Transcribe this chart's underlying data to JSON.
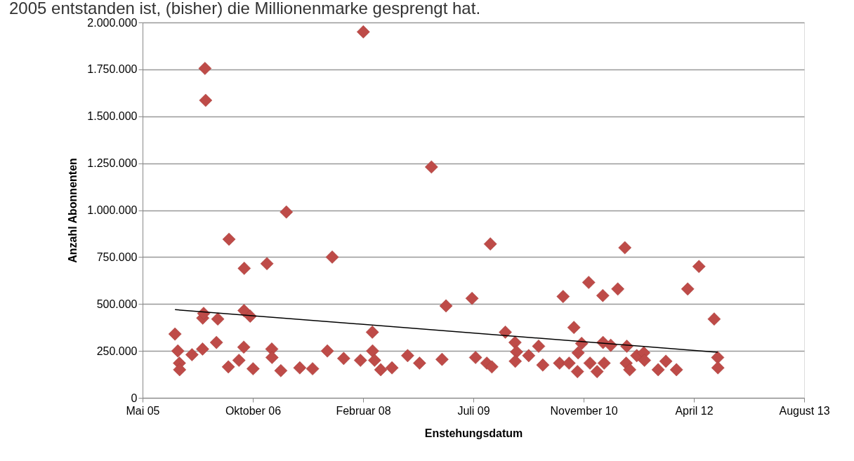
{
  "chart_data": {
    "type": "scatter",
    "xlabel": "Enstehungsdatum",
    "ylabel": "Anzahl Abonnenten",
    "annotations": [
      "2005 entstanden ist, (bisher) die Millionenmarke gesprengt hat."
    ],
    "xlim": [
      "2005-05-28",
      "2013-08-14"
    ],
    "xticks": [
      {
        "value": "2005-05-28",
        "label": "Mai 05"
      },
      {
        "value": "2006-10-10",
        "label": "Oktober 06"
      },
      {
        "value": "2008-02-22",
        "label": "Februar 08"
      },
      {
        "value": "2009-07-06",
        "label": "Juli 09"
      },
      {
        "value": "2010-11-18",
        "label": "November 10"
      },
      {
        "value": "2012-04-01",
        "label": "April 12"
      },
      {
        "value": "2013-08-14",
        "label": "August 13"
      }
    ],
    "ylim": [
      0,
      2000000
    ],
    "yticks": [
      0,
      {
        "value": 250000,
        "label": "250.000"
      },
      {
        "value": 500000,
        "label": "500.000"
      },
      {
        "value": 750000,
        "label": "750.000"
      },
      {
        "value": 1000000,
        "label": "1.000.000"
      },
      {
        "value": 1250000,
        "label": "1.250.000"
      },
      {
        "value": 1500000,
        "label": "1.500.000"
      },
      {
        "value": 1750000,
        "label": "1.750.000"
      },
      {
        "value": 2000000,
        "label": "2.000.000"
      }
    ],
    "grid": "y",
    "series": [
      {
        "color": "#be4b48",
        "marker": "diamond",
        "x": [
          "2005-10-22",
          "2005-11-04",
          "2005-11-11",
          "2005-11-12",
          "2006-01-07",
          "2006-02-24",
          "2006-02-25",
          "2006-03-01",
          "2006-03-07",
          "2006-03-10",
          "2006-05-04",
          "2006-04-28",
          "2006-06-21",
          "2006-06-24",
          "2006-08-08",
          "2006-08-30",
          "2006-08-31",
          "2006-09-01",
          "2006-09-28",
          "2006-10-11",
          "2006-12-13",
          "2007-01-04",
          "2007-01-05",
          "2007-02-14",
          "2007-03-11",
          "2007-05-11",
          "2007-07-08",
          "2007-09-13",
          "2007-10-05",
          "2007-11-26",
          "2008-02-10",
          "2008-02-23",
          "2008-04-04",
          "2008-04-05",
          "2008-04-14",
          "2008-05-12",
          "2008-07-02",
          "2008-09-11",
          "2008-11-04",
          "2008-12-28",
          "2009-02-14",
          "2009-03-04",
          "2009-06-30",
          "2009-07-16",
          "2009-09-05",
          "2009-09-21",
          "2009-09-28",
          "2009-11-28",
          "2010-01-11",
          "2010-01-18",
          "2010-01-12",
          "2010-03-14",
          "2010-04-28",
          "2010-05-17",
          "2010-08-01",
          "2010-08-17",
          "2010-09-13",
          "2010-10-05",
          "2010-10-21",
          "2010-10-24",
          "2010-11-09",
          "2010-12-11",
          "2010-12-17",
          "2011-01-18",
          "2011-02-13",
          "2011-02-14",
          "2011-02-19",
          "2011-03-21",
          "2011-04-22",
          "2011-05-24",
          "2011-05-30",
          "2011-06-02",
          "2011-06-15",
          "2011-07-17",
          "2011-08-18",
          "2011-08-21",
          "2011-10-22",
          "2011-11-26",
          "2012-01-13",
          "2012-03-04",
          "2012-04-24",
          "2012-07-02",
          "2012-07-18",
          "2012-07-19"
        ],
        "values": [
          340000,
          250000,
          185000,
          150000,
          230000,
          260000,
          425000,
          450000,
          1755000,
          1585000,
          420000,
          295000,
          165000,
          845000,
          200000,
          270000,
          465000,
          690000,
          435000,
          155000,
          715000,
          260000,
          215000,
          145000,
          990000,
          160000,
          155000,
          250000,
          750000,
          210000,
          200000,
          1950000,
          350000,
          250000,
          200000,
          150000,
          160000,
          225000,
          185000,
          1230000,
          205000,
          490000,
          530000,
          215000,
          185000,
          820000,
          165000,
          350000,
          295000,
          245000,
          195000,
          225000,
          275000,
          175000,
          185000,
          540000,
          185000,
          375000,
          140000,
          240000,
          290000,
          615000,
          185000,
          140000,
          545000,
          295000,
          185000,
          280000,
          580000,
          800000,
          185000,
          275000,
          150000,
          225000,
          240000,
          200000,
          150000,
          195000,
          150000,
          580000,
          700000,
          420000,
          215000,
          160000
        ]
      },
      {
        "type": "line",
        "marker": "none",
        "color": "#000000",
        "x": [
          "2005-10-22",
          "2012-07-18"
        ],
        "values": [
          470000,
          243000
        ]
      }
    ]
  }
}
